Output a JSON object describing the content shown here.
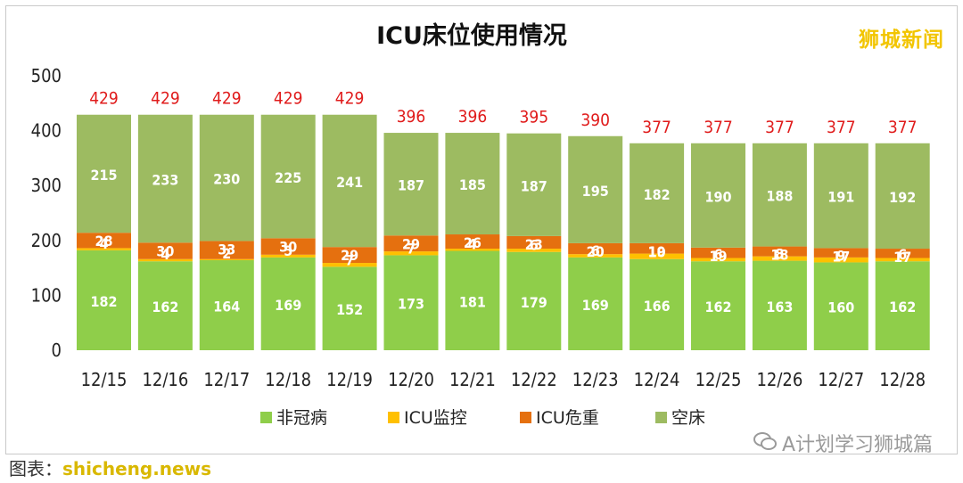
{
  "logo_text": "狮城新闻",
  "footer": {
    "prefix": "图表：",
    "source": "shicheng.news",
    "wechat_account": "A计划学习狮城篇"
  },
  "colors": {
    "非冠病": "#8fce4a",
    "ICU监控": "#ffc000",
    "ICU危重": "#e5700f",
    "空床": "#9dbb61",
    "total_label": "#e01b1b"
  },
  "chart_data": {
    "type": "bar",
    "stacked": true,
    "title": "ICU床位使用情况",
    "xlabel": "",
    "ylabel": "",
    "ylim": [
      0,
      500
    ],
    "yticks": [
      0,
      100,
      200,
      300,
      400,
      500
    ],
    "grid": false,
    "legend_position": "bottom",
    "categories": [
      "12/15",
      "12/16",
      "12/17",
      "12/18",
      "12/19",
      "12/20",
      "12/21",
      "12/22",
      "12/23",
      "12/24",
      "12/25",
      "12/26",
      "12/27",
      "12/28"
    ],
    "series": [
      {
        "name": "非冠病",
        "values": [
          182,
          162,
          164,
          169,
          152,
          173,
          181,
          179,
          169,
          166,
          162,
          163,
          160,
          162
        ]
      },
      {
        "name": "ICU监控",
        "values": [
          4,
          4,
          2,
          5,
          7,
          7,
          4,
          6,
          6,
          10,
          6,
          8,
          9,
          6
        ]
      },
      {
        "name": "ICU危重",
        "values": [
          28,
          30,
          33,
          30,
          29,
          29,
          26,
          23,
          20,
          19,
          19,
          18,
          17,
          17
        ]
      },
      {
        "name": "空床",
        "values": [
          215,
          233,
          230,
          225,
          241,
          187,
          185,
          187,
          195,
          182,
          190,
          188,
          191,
          192
        ]
      }
    ],
    "totals": [
      429,
      429,
      429,
      429,
      429,
      396,
      396,
      395,
      390,
      377,
      377,
      377,
      377,
      377
    ]
  }
}
